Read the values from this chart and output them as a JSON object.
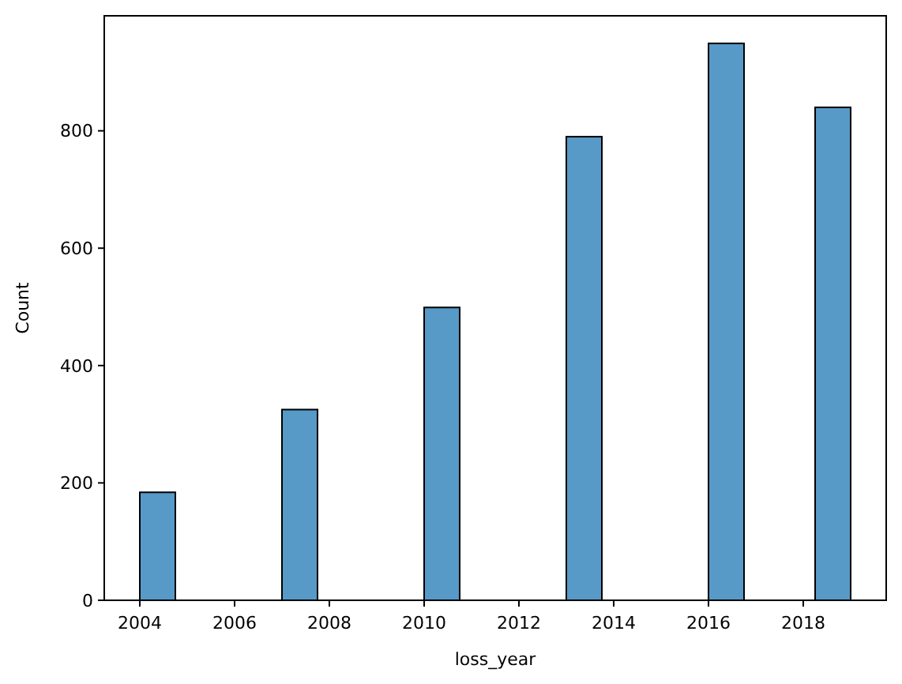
{
  "chart_data": {
    "type": "histogram",
    "xlabel": "loss_year",
    "ylabel": "Count",
    "bins": [
      2004,
      2004.75,
      2005.5,
      2006.25,
      2007,
      2007.75,
      2008.5,
      2009.25,
      2010,
      2010.75,
      2011.5,
      2012.25,
      2013,
      2013.75,
      2014.5,
      2015.25,
      2016,
      2016.75,
      2017.5,
      2018.25,
      2019
    ],
    "values": [
      184,
      0,
      0,
      0,
      325,
      0,
      0,
      0,
      499,
      0,
      0,
      0,
      790,
      0,
      0,
      0,
      949,
      0,
      0,
      840
    ],
    "color": "#5799c7",
    "xlim": [
      2003.25,
      2019.75
    ],
    "xticks": [
      2004,
      2006,
      2008,
      2010,
      2012,
      2014,
      2016,
      2018
    ],
    "ylim": [
      0,
      996
    ],
    "yticks": [
      0,
      200,
      400,
      600,
      800
    ],
    "grid": false
  }
}
